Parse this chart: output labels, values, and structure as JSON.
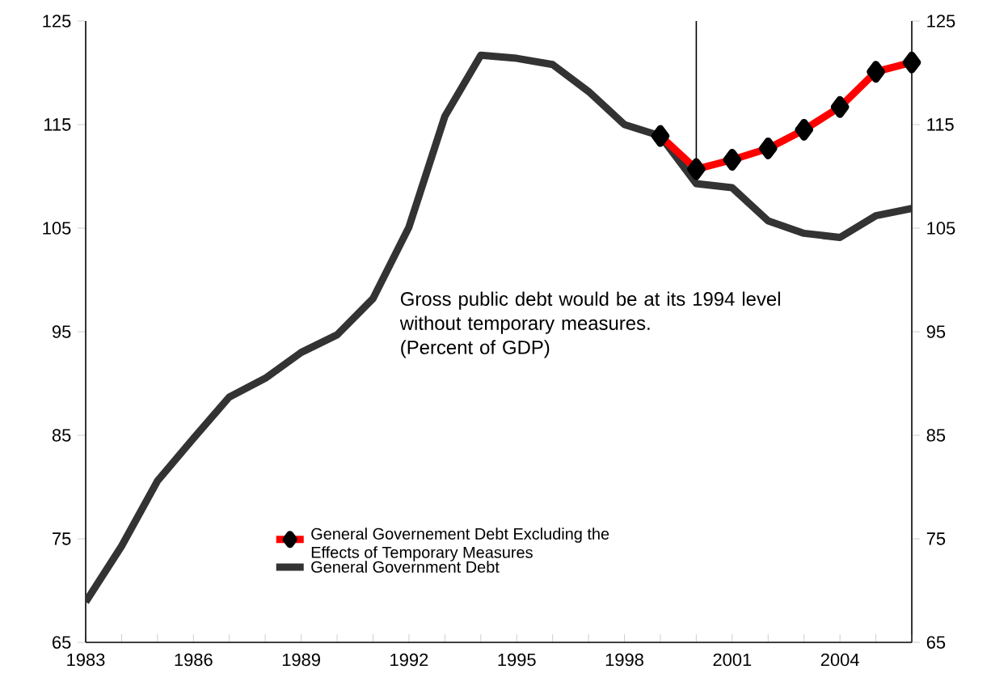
{
  "chart_data": {
    "type": "line",
    "x": [
      1983,
      1984,
      1985,
      1986,
      1987,
      1988,
      1989,
      1990,
      1991,
      1992,
      1993,
      1994,
      1995,
      1996,
      1997,
      1998,
      1999,
      2000,
      2001,
      2002,
      2003,
      2004,
      2005,
      2006
    ],
    "series": [
      {
        "name": "General Governement Debt Excluding the Effects of Temporary Measures",
        "color": "#ff0000",
        "marker": "diamond",
        "x": [
          1999,
          2000,
          2001,
          2002,
          2003,
          2004,
          2005,
          2006
        ],
        "values": [
          113.9,
          110.7,
          111.6,
          112.7,
          114.5,
          116.7,
          120.1,
          121.0
        ]
      },
      {
        "name": "General Government Debt",
        "color": "#333333",
        "marker": "none",
        "values": [
          68.9,
          74.3,
          80.6,
          84.7,
          88.7,
          90.5,
          93.0,
          94.7,
          98.2,
          105.1,
          115.8,
          121.7,
          121.4,
          120.8,
          118.2,
          115.0,
          113.9,
          109.3,
          108.9,
          105.7,
          104.5,
          104.1,
          106.2,
          106.9
        ]
      }
    ],
    "xlim": [
      1983,
      2006
    ],
    "xticks": [
      1983,
      {
        "value": 1984,
        "label": null
      },
      {
        "value": 1985,
        "label": null
      },
      1986,
      {
        "value": 1987,
        "label": null
      },
      {
        "value": 1988,
        "label": null
      },
      1989,
      {
        "value": 1990,
        "label": null
      },
      {
        "value": 1991,
        "label": null
      },
      1992,
      {
        "value": 1993,
        "label": null
      },
      {
        "value": 1994,
        "label": null
      },
      1995,
      {
        "value": 1996,
        "label": null
      },
      {
        "value": 1997,
        "label": null
      },
      1998,
      {
        "value": 1999,
        "label": null
      },
      {
        "value": 2000,
        "label": null
      },
      2001,
      {
        "value": 2002,
        "label": null
      },
      {
        "value": 2003,
        "label": null
      },
      2004,
      {
        "value": 2005,
        "label": null
      },
      {
        "value": 2006,
        "label": null
      }
    ],
    "ylim": [
      65,
      125
    ],
    "yticks": [
      65,
      75,
      85,
      95,
      105,
      115,
      125
    ],
    "y2lim": [
      65,
      125
    ],
    "y2ticks": [
      65,
      75,
      85,
      95,
      105,
      115,
      125
    ],
    "ref_lines": [
      {
        "axis": "x",
        "value": 2000,
        "color": "#000000"
      }
    ],
    "annotations": [
      "Gross public debt would be at its 1994 level without temporary measures.",
      "(Percent of GDP)"
    ],
    "legend": "bottom",
    "grid": false,
    "line_style": "solid"
  }
}
